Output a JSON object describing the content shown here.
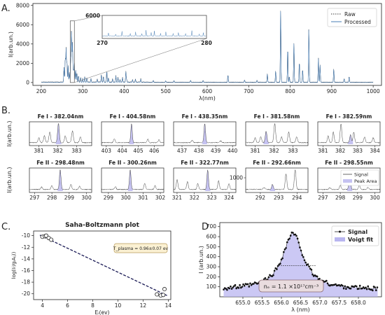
{
  "panel_labels": [
    "A.",
    "B.",
    "C.",
    "D"
  ],
  "chart_data": [
    {
      "id": "A",
      "type": "line",
      "xlabel": "λ(nm)",
      "ylabel": "I(arb.un.)",
      "xlim": [
        180,
        1020
      ],
      "ylim": [
        -300,
        8200
      ],
      "xticks": [
        200,
        300,
        400,
        500,
        600,
        700,
        800,
        900,
        1000
      ],
      "yticks": [
        0,
        2000,
        4000,
        6000,
        8000
      ],
      "legend": {
        "position": "top-right",
        "entries": [
          "Raw",
          "Processed"
        ]
      },
      "series": [
        {
          "name": "Raw",
          "color": "#3a3a3a"
        },
        {
          "name": "Processed",
          "color": "#4a7fb5"
        }
      ],
      "peaks": [
        [
          255,
          1600
        ],
        [
          258,
          2600
        ],
        [
          260,
          3500
        ],
        [
          262,
          2200
        ],
        [
          265,
          1800
        ],
        [
          268,
          1000
        ],
        [
          271,
          2300
        ],
        [
          273,
          5400
        ],
        [
          275,
          3300
        ],
        [
          276,
          1800
        ],
        [
          278,
          1300
        ],
        [
          280,
          2000
        ],
        [
          283,
          1300
        ],
        [
          286,
          1000
        ],
        [
          290,
          700
        ],
        [
          295,
          500
        ],
        [
          300,
          400
        ],
        [
          305,
          600
        ],
        [
          310,
          500
        ],
        [
          320,
          400
        ],
        [
          335,
          300
        ],
        [
          345,
          800
        ],
        [
          350,
          600
        ],
        [
          358,
          1200
        ],
        [
          362,
          500
        ],
        [
          372,
          350
        ],
        [
          380,
          700
        ],
        [
          385,
          500
        ],
        [
          390,
          300
        ],
        [
          396,
          500
        ],
        [
          404,
          1100
        ],
        [
          406,
          300
        ],
        [
          420,
          250
        ],
        [
          427,
          300
        ],
        [
          440,
          350
        ],
        [
          470,
          200
        ],
        [
          500,
          150
        ],
        [
          520,
          180
        ],
        [
          560,
          200
        ],
        [
          590,
          200
        ],
        [
          650,
          800
        ],
        [
          690,
          250
        ],
        [
          720,
          200
        ],
        [
          745,
          900
        ],
        [
          765,
          1200
        ],
        [
          777,
          7700
        ],
        [
          794,
          3700
        ],
        [
          798,
          600
        ],
        [
          809,
          4200
        ],
        [
          822,
          2200
        ],
        [
          830,
          1400
        ],
        [
          845,
          5700
        ],
        [
          868,
          2500
        ],
        [
          872,
          1800
        ],
        [
          905,
          1400
        ],
        [
          930,
          400
        ],
        [
          942,
          600
        ]
      ],
      "inset": {
        "xlim": [
          270,
          280
        ],
        "ylim": [
          0,
          6000
        ],
        "xticks": [
          270,
          280
        ],
        "yticks": [
          6000
        ]
      }
    },
    {
      "id": "B",
      "type": "line",
      "ylabel": "I(arb.un.)",
      "legend": {
        "position": "lower-right",
        "entries": [
          "Signal",
          "Peak Area"
        ]
      },
      "series": [
        {
          "name": "Signal",
          "color": "#444444"
        },
        {
          "name": "Peak Area",
          "color": "#9e9ae8"
        }
      ],
      "subplots": [
        {
          "title": "Fe I - 382.04nm",
          "center": 382.04,
          "xlim": [
            380.5,
            383.8
          ],
          "xticks": [
            381,
            382,
            383
          ],
          "peaks": [
            [
              381.0,
              0.25
            ],
            [
              381.3,
              0.35
            ],
            [
              381.58,
              0.55
            ],
            [
              382.04,
              1.0
            ],
            [
              382.4,
              0.35
            ],
            [
              382.78,
              0.6
            ],
            [
              383.2,
              0.3
            ]
          ]
        },
        {
          "title": "Fe I - 404.58nm",
          "center": 404.58,
          "xlim": [
            402.7,
            406.6
          ],
          "xticks": [
            403,
            404,
            405,
            406
          ],
          "peaks": [
            [
              403.5,
              0.2
            ],
            [
              404.58,
              1.0
            ],
            [
              405.6,
              0.18
            ],
            [
              406.3,
              0.15
            ]
          ]
        },
        {
          "title": "Fe I - 438.35nm",
          "center": 438.35,
          "xlim": [
            436.5,
            440.2
          ],
          "xticks": [
            437,
            438,
            439,
            440
          ],
          "peaks": [
            [
              437.6,
              0.12
            ],
            [
              438.35,
              1.0
            ],
            [
              439.3,
              0.1
            ]
          ]
        },
        {
          "title": "Fe I - 381.58nm",
          "center": 381.58,
          "xlim": [
            380.5,
            383.8
          ],
          "xticks": [
            381,
            382,
            383
          ],
          "peaks": [
            [
              381.0,
              0.25
            ],
            [
              381.3,
              0.3
            ],
            [
              381.58,
              0.6
            ],
            [
              382.04,
              1.0
            ],
            [
              382.4,
              0.3
            ],
            [
              382.78,
              0.55
            ],
            [
              383.2,
              0.3
            ]
          ]
        },
        {
          "title": "Fe I - 382.59nm",
          "center": 382.59,
          "xlim": [
            380.7,
            384.3
          ],
          "xticks": [
            381,
            382,
            383,
            384
          ],
          "peaks": [
            [
              381.3,
              0.35
            ],
            [
              381.6,
              0.55
            ],
            [
              382.04,
              1.0
            ],
            [
              382.59,
              0.4
            ],
            [
              382.78,
              0.55
            ],
            [
              383.4,
              0.3
            ],
            [
              383.9,
              0.25
            ]
          ]
        },
        {
          "title": "Fe II - 298.48nm",
          "center": 298.48,
          "xlim": [
            296.7,
            300.3
          ],
          "xticks": [
            297,
            298,
            299,
            300
          ],
          "peaks": [
            [
              297.4,
              0.12
            ],
            [
              298.0,
              0.2
            ],
            [
              298.48,
              1.0
            ],
            [
              299.1,
              0.25
            ],
            [
              299.6,
              0.15
            ]
          ]
        },
        {
          "title": "Fe II - 300.26nm",
          "center": 300.26,
          "xlim": [
            298.6,
            302.2
          ],
          "xticks": [
            299,
            300,
            301,
            302
          ],
          "peaks": [
            [
              299.4,
              0.15
            ],
            [
              300.26,
              1.0
            ],
            [
              301.1,
              0.3
            ],
            [
              301.7,
              0.2
            ]
          ]
        },
        {
          "title": "Fe II - 322.77nm",
          "center": 322.77,
          "xlim": [
            320.8,
            324.4
          ],
          "xticks": [
            321,
            322,
            323,
            324
          ],
          "peaks": [
            [
              321.0,
              0.5
            ],
            [
              321.6,
              0.4
            ],
            [
              322.2,
              0.3
            ],
            [
              322.77,
              1.0
            ],
            [
              323.4,
              0.45
            ],
            [
              324.0,
              0.3
            ]
          ]
        },
        {
          "title": "Fe II - 292.66nm",
          "center": 292.66,
          "xlim": [
            291.2,
            294.6
          ],
          "xticks": [
            292,
            293,
            294
          ],
          "yticks": [
            1000
          ],
          "peaks": [
            [
              292.2,
              0.1
            ],
            [
              292.66,
              0.25
            ],
            [
              293.4,
              0.8
            ],
            [
              293.9,
              1.0
            ]
          ]
        },
        {
          "title": "Fe II - 298.55nm",
          "center": 298.55,
          "xlim": [
            296.7,
            300.3
          ],
          "xticks": [
            297,
            298,
            299,
            300
          ],
          "peaks": [
            [
              297.4,
              0.1
            ],
            [
              298.0,
              0.2
            ],
            [
              298.55,
              1.0
            ],
            [
              299.1,
              0.22
            ],
            [
              299.6,
              0.12
            ]
          ]
        }
      ]
    },
    {
      "id": "C",
      "type": "scatter",
      "title": "Saha-Boltzmann plot",
      "xlabel": "Eᵢ(ev)",
      "ylabel": "log(Iᵢʲ/gᵢAᵢⱼ))",
      "xlim": [
        3.3,
        14.2
      ],
      "ylim": [
        -21,
        -9.2
      ],
      "xticks": [
        4,
        6,
        8,
        10,
        12,
        14
      ],
      "yticks": [
        -10,
        -12,
        -14,
        -16,
        -18,
        -20
      ],
      "annotation": "T_plasma = 0.96±0.07 ev",
      "points": [
        [
          4.0,
          -10.2
        ],
        [
          4.2,
          -10.1
        ],
        [
          4.3,
          -10.0
        ],
        [
          4.5,
          -10.4
        ],
        [
          4.7,
          -10.7
        ],
        [
          13.1,
          -20.1
        ],
        [
          13.4,
          -20.3
        ],
        [
          13.6,
          -20.2
        ],
        [
          13.7,
          -19.2
        ]
      ],
      "fit": [
        [
          3.8,
          -9.9
        ],
        [
          13.9,
          -20.3
        ]
      ]
    },
    {
      "id": "D",
      "type": "scatter",
      "xlabel": "λ (nm)",
      "ylabel": "I (arb.un.)",
      "xlim": [
        654.4,
        658.6
      ],
      "ylim": [
        0,
        740
      ],
      "xticks": [
        655.0,
        655.5,
        656.0,
        656.5,
        657.0,
        657.5,
        658.0
      ],
      "yticks": [
        100,
        200,
        300,
        400,
        500,
        600,
        700
      ],
      "legend": {
        "position": "top-right",
        "entries": [
          "Signal",
          "Voigt fit"
        ]
      },
      "annotation": "nₑ = 1.1 ×10¹⁷cm⁻³",
      "voigt": {
        "center": 656.3,
        "amplitude": 560,
        "baseline": 70,
        "gamma": 0.33
      },
      "fwhm": [
        655.93,
        656.9,
        310
      ]
    }
  ]
}
